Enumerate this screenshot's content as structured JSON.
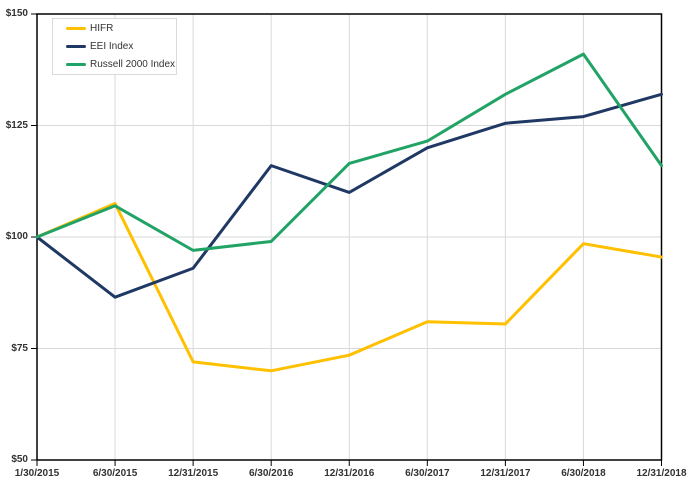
{
  "chart_data": {
    "type": "line",
    "title": "",
    "xlabel": "",
    "ylabel": "",
    "x": [
      "1/30/2015",
      "6/30/2015",
      "12/31/2015",
      "6/30/2016",
      "12/31/2016",
      "6/30/2017",
      "12/31/2017",
      "6/30/2018",
      "12/31/2018"
    ],
    "series": [
      {
        "name": "HIFR",
        "color": "#FFC000",
        "values": [
          100,
          107.5,
          72,
          70,
          73.5,
          81,
          80.5,
          98.5,
          95.5
        ]
      },
      {
        "name": "EEI Index",
        "color": "#1F3864",
        "values": [
          100,
          86.5,
          93,
          116,
          110,
          120,
          125.5,
          127,
          132
        ]
      },
      {
        "name": "Russell 2000 Index",
        "color": "#21A366",
        "values": [
          100,
          107,
          97,
          99,
          116.5,
          121.5,
          132,
          141,
          116
        ]
      }
    ],
    "ylim": [
      50,
      150
    ],
    "ytick_interval": 25,
    "ytick_labels": [
      "$50",
      "$75",
      "$100",
      "$125",
      "$150"
    ],
    "grid": true,
    "legend_position": "top-left",
    "colors": {
      "grid": "#d9d9d9",
      "axis": "#000000",
      "tick_text": "#333333",
      "legend_border": "#d9d9d9",
      "background": "#ffffff"
    }
  }
}
